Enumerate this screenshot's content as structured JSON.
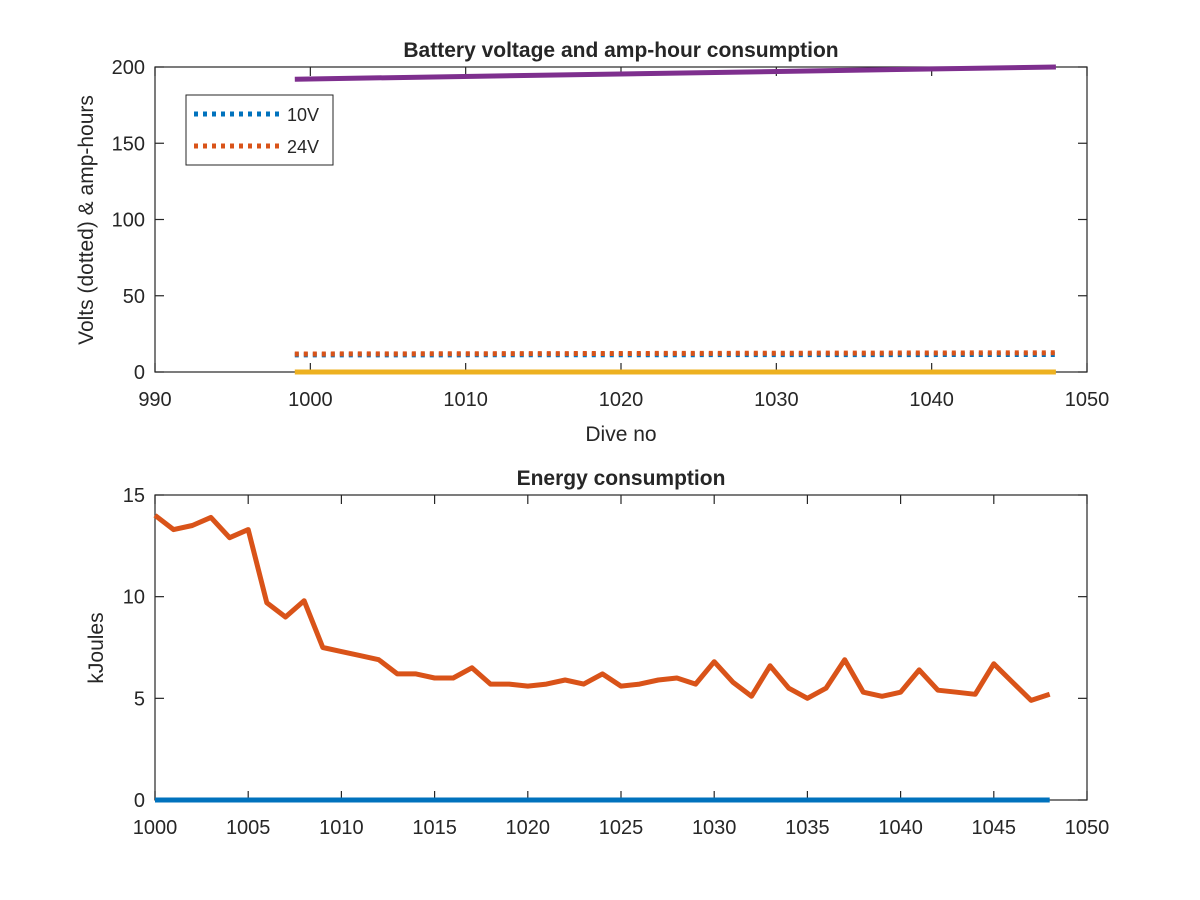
{
  "chart_data": [
    {
      "type": "line",
      "title": "Battery voltage and amp-hour consumption",
      "xlabel": "Dive no",
      "ylabel": "Volts (dotted) & amp-hours",
      "xlim": [
        990,
        1050
      ],
      "ylim": [
        0,
        200
      ],
      "xticks": [
        "990",
        "1000",
        "1010",
        "1020",
        "1030",
        "1040",
        "1050"
      ],
      "yticks": [
        "0",
        "50",
        "100",
        "150",
        "200"
      ],
      "legend_position": "top-left",
      "series": [
        {
          "name": "10V",
          "style": "dotted",
          "color": "#0072BD",
          "x": [
            999,
            1048
          ],
          "y": [
            11.2,
            11.5
          ]
        },
        {
          "name": "24V",
          "style": "dotted",
          "color": "#D95319",
          "x": [
            999,
            1048
          ],
          "y": [
            11.8,
            12.6
          ]
        },
        {
          "style": "solid",
          "color": "#EDB120",
          "x": [
            999,
            1048
          ],
          "y": [
            0,
            0
          ]
        },
        {
          "style": "solid",
          "color": "#7E2F8E",
          "x": [
            999,
            1048
          ],
          "y": [
            192,
            200
          ]
        }
      ]
    },
    {
      "type": "line",
      "title": "Energy consumption",
      "xlabel": "",
      "ylabel": "kJoules",
      "xlim": [
        1000,
        1050
      ],
      "ylim": [
        0,
        15
      ],
      "xticks": [
        "1000",
        "1005",
        "1010",
        "1015",
        "1020",
        "1025",
        "1030",
        "1035",
        "1040",
        "1045",
        "1050"
      ],
      "yticks": [
        "0",
        "5",
        "10",
        "15"
      ],
      "series": [
        {
          "style": "solid",
          "color": "#0072BD",
          "x": [
            1000,
            1048
          ],
          "y": [
            0,
            0
          ]
        },
        {
          "style": "solid",
          "color": "#D95319",
          "x": [
            1000,
            1001,
            1002,
            1003,
            1004,
            1005,
            1006,
            1007,
            1008,
            1009,
            1010,
            1011,
            1012,
            1013,
            1014,
            1015,
            1016,
            1017,
            1018,
            1019,
            1020,
            1021,
            1022,
            1023,
            1024,
            1025,
            1026,
            1027,
            1028,
            1029,
            1030,
            1031,
            1032,
            1033,
            1034,
            1035,
            1036,
            1037,
            1038,
            1039,
            1040,
            1041,
            1042,
            1043,
            1044,
            1045,
            1046,
            1047,
            1048
          ],
          "y": [
            14.0,
            13.3,
            13.5,
            13.9,
            12.9,
            13.3,
            9.7,
            9.0,
            9.8,
            7.5,
            7.3,
            7.1,
            6.9,
            6.2,
            6.2,
            6.0,
            6.0,
            6.5,
            5.7,
            5.7,
            5.6,
            5.7,
            5.9,
            5.7,
            6.2,
            5.6,
            5.7,
            5.9,
            6.0,
            5.7,
            6.8,
            5.8,
            5.1,
            6.6,
            5.5,
            5.0,
            5.5,
            6.9,
            5.3,
            5.1,
            5.3,
            6.4,
            5.4,
            5.3,
            5.2,
            6.7,
            5.8,
            4.9,
            5.2
          ]
        }
      ]
    }
  ]
}
